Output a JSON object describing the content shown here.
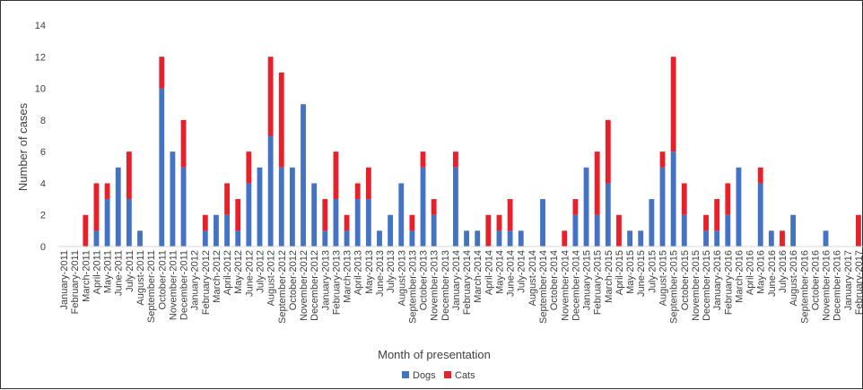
{
  "chart_data": {
    "type": "bar",
    "stacked": true,
    "title": "",
    "xlabel": "Month of presentation",
    "ylabel": "Number of cases",
    "ylim": [
      0,
      14
    ],
    "yticks": [
      0,
      2,
      4,
      6,
      8,
      10,
      12,
      14
    ],
    "grid": false,
    "legend_position": "bottom",
    "categories": [
      "January-2011",
      "February-2011",
      "March-2011",
      "April-2011",
      "May-2011",
      "June-2011",
      "July-2011",
      "August-2011",
      "September-2011",
      "October-2011",
      "November-2011",
      "December-2011",
      "January-2012",
      "February-2012",
      "March-2012",
      "April-2012",
      "May-2012",
      "June-2012",
      "July-2012",
      "August-2012",
      "September-2012",
      "October-2012",
      "November-2012",
      "December-2012",
      "January-2013",
      "February-2013",
      "March-2013",
      "April-2013",
      "May-2013",
      "June-2013",
      "July-2013",
      "August-2013",
      "September-2013",
      "October-2013",
      "November-2013",
      "December-2013",
      "January-2014",
      "February-2014",
      "March-2014",
      "April-2014",
      "May-2014",
      "June-2014",
      "July-2014",
      "August-2014",
      "September-2014",
      "October-2014",
      "November-2014",
      "December-2014",
      "January-2015",
      "February-2015",
      "March-2015",
      "April-2015",
      "May-2015",
      "June-2015",
      "July-2015",
      "August-2015",
      "September-2015",
      "October-2015",
      "November-2015",
      "December-2015",
      "January-2016",
      "February-2016",
      "March-2016",
      "April-2016",
      "May-2016",
      "June-2016",
      "July-2016",
      "August-2016",
      "September-2016",
      "October-2016",
      "November-2016",
      "December-2016",
      "January-2017",
      "February-2017"
    ],
    "series": [
      {
        "name": "Dogs",
        "color": "#4472C4",
        "values": [
          0,
          0,
          0,
          1,
          3,
          5,
          3,
          1,
          0,
          10,
          6,
          5,
          0,
          1,
          2,
          2,
          1,
          4,
          5,
          7,
          5,
          5,
          9,
          4,
          1,
          3,
          1,
          3,
          3,
          1,
          2,
          4,
          1,
          5,
          2,
          0,
          5,
          1,
          1,
          0,
          1,
          1,
          1,
          0,
          3,
          0,
          0,
          2,
          5,
          2,
          4,
          0,
          1,
          1,
          3,
          5,
          6,
          2,
          0,
          1,
          1,
          2,
          5,
          0,
          4,
          1,
          0,
          2,
          0,
          0,
          1,
          0,
          0,
          0
        ]
      },
      {
        "name": "Cats",
        "color": "#E8202A",
        "values": [
          0,
          0,
          2,
          3,
          1,
          0,
          3,
          0,
          0,
          2,
          0,
          3,
          0,
          1,
          0,
          2,
          2,
          2,
          0,
          5,
          6,
          0,
          0,
          0,
          2,
          3,
          1,
          1,
          2,
          0,
          0,
          0,
          1,
          1,
          1,
          0,
          1,
          0,
          0,
          2,
          1,
          2,
          0,
          0,
          0,
          0,
          1,
          1,
          0,
          4,
          4,
          2,
          0,
          0,
          0,
          1,
          6,
          2,
          0,
          1,
          2,
          2,
          0,
          0,
          1,
          0,
          1,
          0,
          0,
          0,
          0,
          0,
          0,
          2
        ]
      }
    ]
  }
}
